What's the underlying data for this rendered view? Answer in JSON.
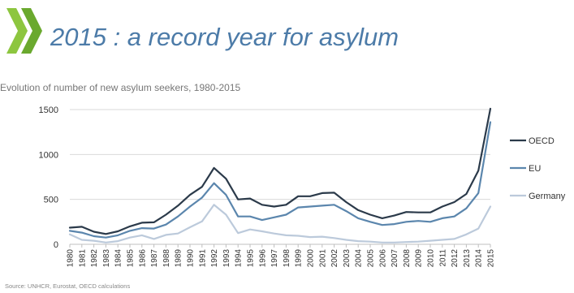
{
  "slide": {
    "title": "2015 : a record year for asylum",
    "source": "Source: UNHCR, Eurostat, OECD calculations",
    "logo_colors": [
      "#8dc63f",
      "#6aa92e"
    ]
  },
  "chart_data": {
    "type": "line",
    "title": "Evolution of number of new asylum seekers, 1980-2015",
    "xlabel": "",
    "ylabel": "",
    "ylim": [
      0,
      1500
    ],
    "yticks": [
      0,
      500,
      1000,
      1500
    ],
    "grid": true,
    "legend": "right",
    "x": [
      "1980",
      "1981",
      "1982",
      "1983",
      "1984",
      "1985",
      "1986",
      "1987",
      "1988",
      "1989",
      "1990",
      "1991",
      "1992",
      "1993",
      "1994",
      "1995",
      "1996",
      "1997",
      "1998",
      "1999",
      "2000",
      "2001",
      "2002",
      "2003",
      "2004",
      "2005",
      "2006",
      "2007",
      "2008",
      "2009",
      "2010",
      "2011",
      "2012",
      "2013",
      "2014",
      "2015"
    ],
    "series": [
      {
        "name": "OECD",
        "color": "#2b3a4a",
        "values": [
          185,
          195,
          140,
          115,
          145,
          200,
          240,
          245,
          330,
          430,
          550,
          640,
          850,
          730,
          500,
          510,
          440,
          420,
          440,
          535,
          535,
          570,
          575,
          470,
          380,
          330,
          290,
          320,
          360,
          355,
          355,
          420,
          470,
          560,
          820,
          1510
        ]
      },
      {
        "name": "EU",
        "color": "#5b86ad",
        "values": [
          150,
          130,
          90,
          75,
          100,
          150,
          180,
          175,
          220,
          310,
          420,
          520,
          680,
          550,
          310,
          310,
          270,
          300,
          330,
          410,
          420,
          430,
          440,
          370,
          290,
          250,
          215,
          225,
          250,
          260,
          250,
          290,
          310,
          400,
          570,
          1360
        ]
      },
      {
        "name": "Germany",
        "color": "#bccadb",
        "values": [
          110,
          50,
          40,
          20,
          35,
          75,
          100,
          60,
          105,
          120,
          190,
          255,
          440,
          330,
          125,
          165,
          145,
          120,
          100,
          95,
          80,
          85,
          70,
          50,
          35,
          30,
          20,
          20,
          25,
          30,
          40,
          50,
          60,
          110,
          175,
          420
        ]
      }
    ]
  }
}
